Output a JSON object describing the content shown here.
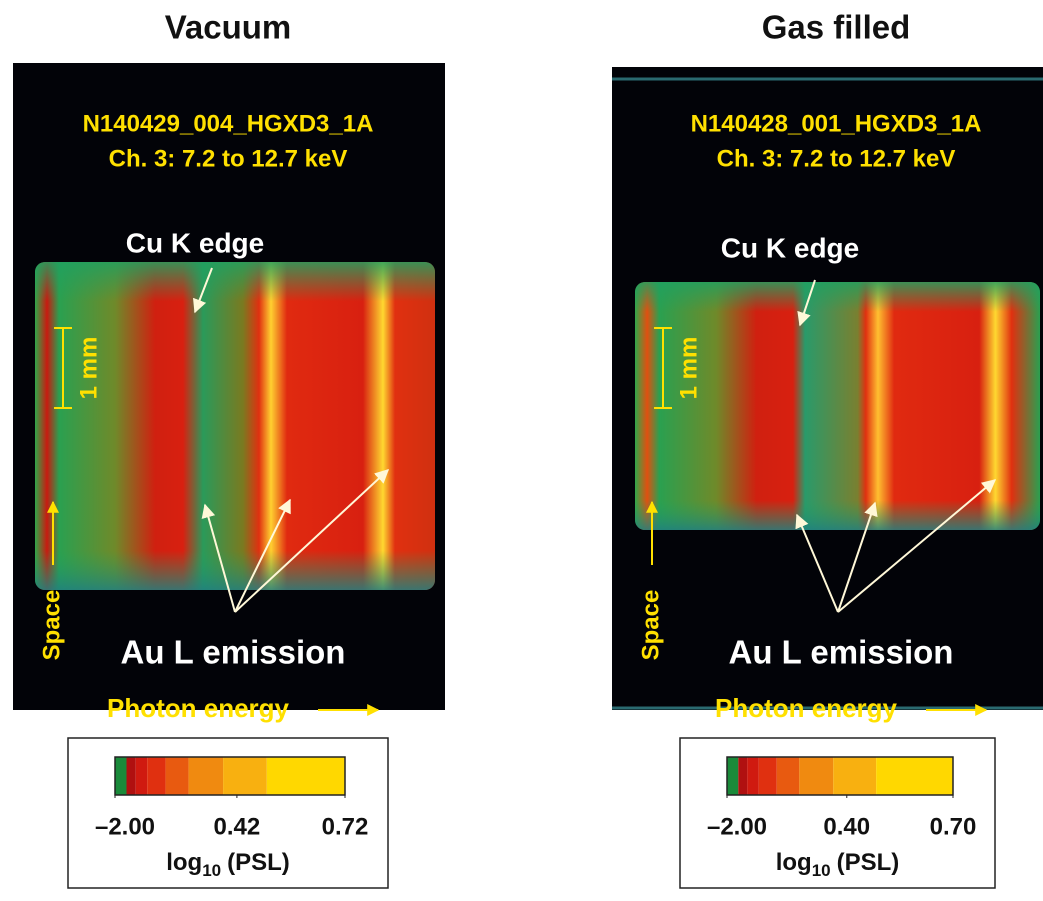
{
  "panels": [
    {
      "title": "Vacuum",
      "shot": "N140429_004_HGXD3_1A",
      "channel": "Ch. 3: 7.2 to 12.7 keV",
      "edge_label": "Cu K edge",
      "scale_label": "1 mm",
      "y_axis_label": "Space",
      "emission_label": "Au L emission",
      "x_axis_label": "Photon energy",
      "colorbar": {
        "ticks": [
          {
            "value": -2,
            "label": "–2.00"
          },
          0.42,
          0.72
        ],
        "label": {
          "base": "log",
          "sub": "10",
          "unit": "(PSL)"
        },
        "colors": [
          "#1a8a3a",
          "#b01010",
          "#d01a10",
          "#e03010",
          "#e85a10",
          "#f08a10",
          "#f8b010",
          "#ffd800"
        ]
      }
    },
    {
      "title": "Gas filled",
      "shot": "N140428_001_HGXD3_1A",
      "channel": "Ch. 3: 7.2 to 12.7 keV",
      "edge_label": "Cu K edge",
      "scale_label": "1 mm",
      "y_axis_label": "Space",
      "emission_label": "Au L emission",
      "x_axis_label": "Photon energy",
      "colorbar": {
        "ticks": [
          {
            "value": -2,
            "label": "–2.00"
          },
          {
            "value": 0.4,
            "label": "0.40"
          },
          {
            "value": 0.7,
            "label": "0.70"
          }
        ],
        "label": {
          "base": "log",
          "sub": "10",
          "unit": "(PSL)"
        },
        "colors": [
          "#1a8a3a",
          "#b01010",
          "#d01a10",
          "#e03010",
          "#e85a10",
          "#f08a10",
          "#f8b010",
          "#ffd800"
        ]
      }
    }
  ]
}
